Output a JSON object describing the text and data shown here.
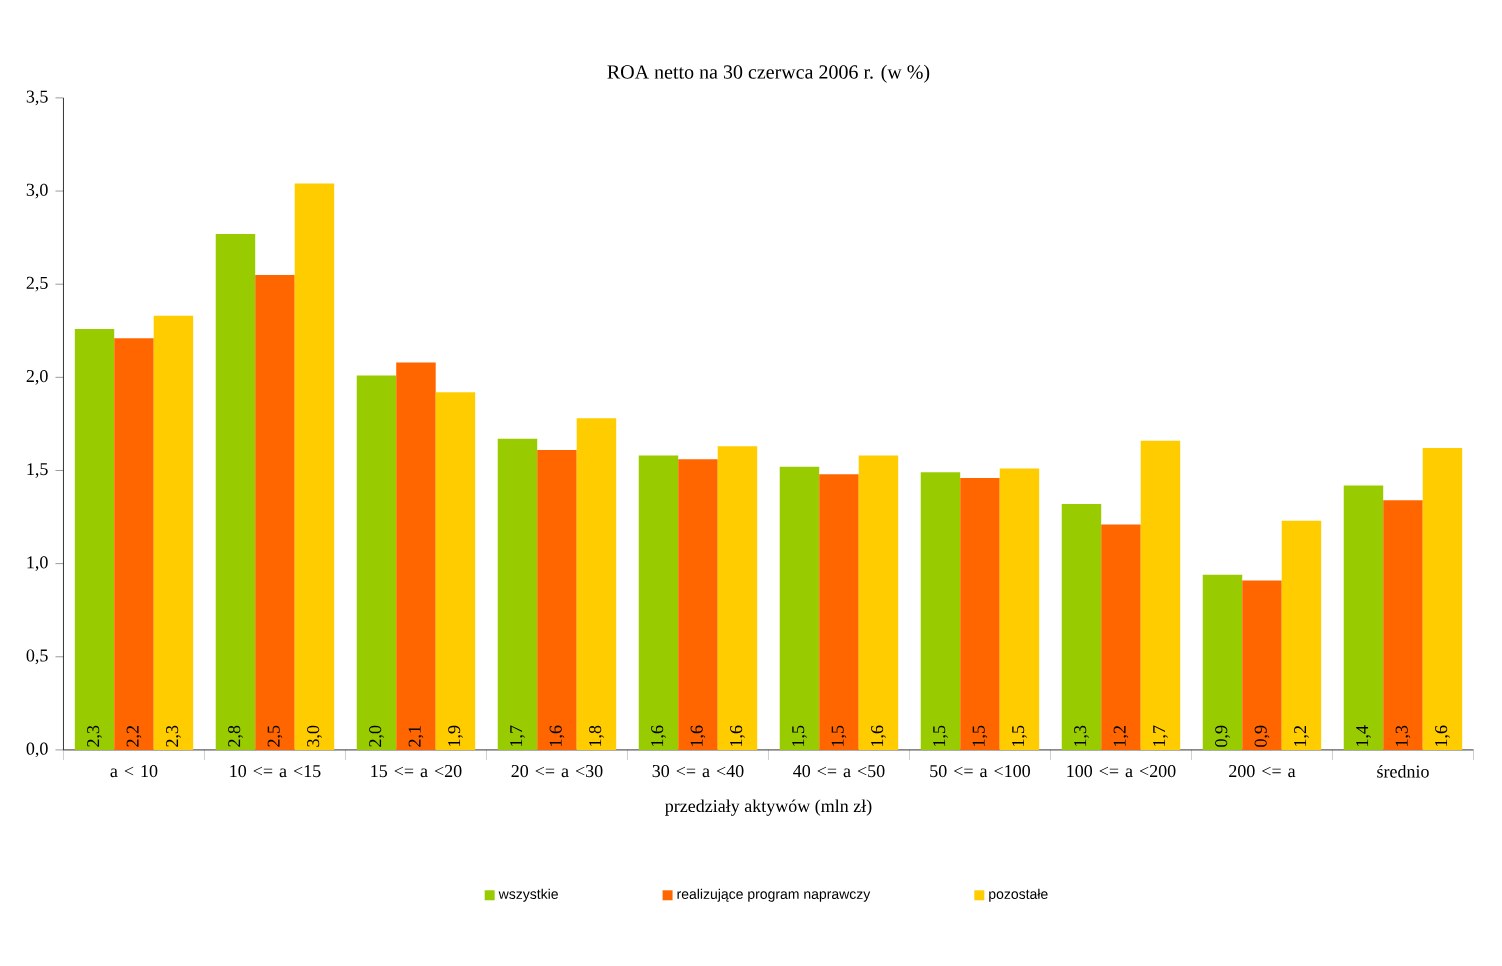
{
  "chart_data": {
    "type": "bar",
    "title": "ROA netto na 30 czerwca 2006 r. (w %)",
    "xlabel": "przedziały aktywów (mln zł)",
    "categories": [
      "a < 10",
      "10 <= a <15",
      "15 <= a <20",
      "20 <= a <30",
      "30 <= a <40",
      "40 <= a <50",
      "50 <= a <100",
      "100 <= a <200",
      "200 <= a",
      "średnio"
    ],
    "series": [
      {
        "name": "wszystkie",
        "color": "#99cc00",
        "values": [
          2.26,
          2.77,
          2.01,
          1.67,
          1.58,
          1.52,
          1.49,
          1.32,
          0.94,
          1.42
        ],
        "value_labels": [
          "2,3",
          "2,8",
          "2,0",
          "1,7",
          "1,6",
          "1,5",
          "1,5",
          "1,3",
          "0,9",
          "1,4"
        ]
      },
      {
        "name": "realizujące program naprawczy",
        "color": "#ff6600",
        "values": [
          2.21,
          2.55,
          2.08,
          1.61,
          1.56,
          1.48,
          1.46,
          1.21,
          0.91,
          1.34
        ],
        "value_labels": [
          "2,2",
          "2,5",
          "2,1",
          "1,6",
          "1,6",
          "1,5",
          "1,5",
          "1,2",
          "0,9",
          "1,3"
        ]
      },
      {
        "name": "pozostałe",
        "color": "#ffcc00",
        "values": [
          2.33,
          3.04,
          1.92,
          1.78,
          1.63,
          1.58,
          1.51,
          1.66,
          1.23,
          1.62
        ],
        "value_labels": [
          "2,3",
          "3,0",
          "1,9",
          "1,8",
          "1,6",
          "1,6",
          "1,5",
          "1,7",
          "1,2",
          "1,6"
        ]
      }
    ],
    "ylim": [
      0,
      3.5
    ],
    "yticks": [
      {
        "value": 0,
        "label": "0,0"
      },
      {
        "value": 0.5,
        "label": "0,5"
      },
      {
        "value": 1,
        "label": "1,0"
      },
      {
        "value": 1.5,
        "label": "1,5"
      },
      {
        "value": 2,
        "label": "2,0"
      },
      {
        "value": 2.5,
        "label": "2,5"
      },
      {
        "value": 3,
        "label": "3,0"
      },
      {
        "value": 3.5,
        "label": "3,5"
      }
    ],
    "grid": false,
    "legend": "bottom"
  }
}
